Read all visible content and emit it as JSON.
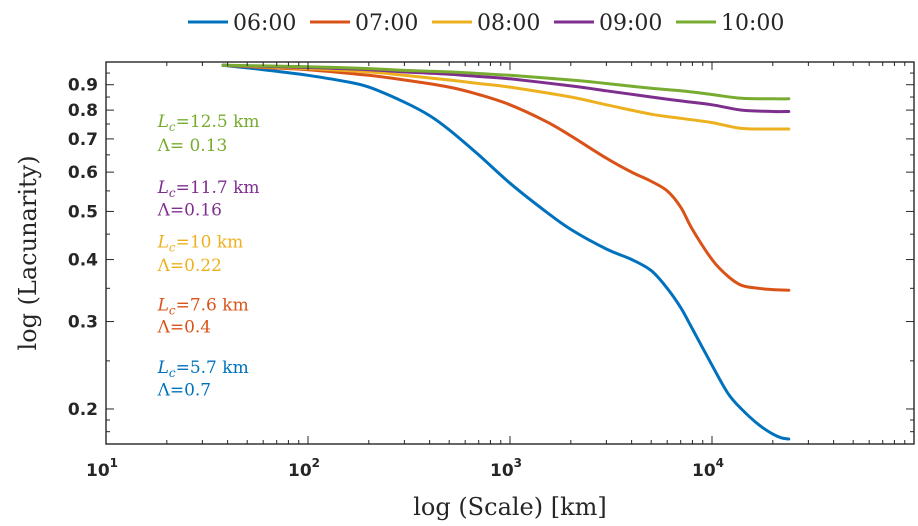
{
  "chart_data": {
    "type": "line",
    "xlabel": "log (Scale) [km]",
    "ylabel": "log (Lacunarity)",
    "xscale": "log",
    "yscale": "log",
    "xlim": [
      10,
      100000
    ],
    "ylim": [
      0.17,
      1.0
    ],
    "grid": false,
    "legend_position": "top",
    "x_ticks": [
      {
        "value": 10,
        "base": "10",
        "exp": "1"
      },
      {
        "value": 100,
        "base": "10",
        "exp": "2"
      },
      {
        "value": 1000,
        "base": "10",
        "exp": "3"
      },
      {
        "value": 10000,
        "base": "10",
        "exp": "4"
      }
    ],
    "y_ticks": [
      {
        "value": 0.2,
        "label": "0.2"
      },
      {
        "value": 0.3,
        "label": "0.3"
      },
      {
        "value": 0.4,
        "label": "0.4"
      },
      {
        "value": 0.5,
        "label": "0.5"
      },
      {
        "value": 0.6,
        "label": "0.6"
      },
      {
        "value": 0.7,
        "label": "0.7"
      },
      {
        "value": 0.8,
        "label": "0.8"
      },
      {
        "value": 0.9,
        "label": "0.9"
      }
    ],
    "series": [
      {
        "name": "06:00",
        "color": "#0072BD",
        "x": [
          38,
          60,
          100,
          150,
          200,
          300,
          400,
          500,
          700,
          1000,
          1500,
          2000,
          3000,
          4000,
          5000,
          6000,
          7000,
          8000,
          10000,
          12000,
          14000,
          17000,
          20000,
          22000,
          24000
        ],
        "y": [
          0.985,
          0.965,
          0.94,
          0.915,
          0.89,
          0.83,
          0.78,
          0.73,
          0.65,
          0.57,
          0.5,
          0.46,
          0.42,
          0.4,
          0.38,
          0.35,
          0.32,
          0.29,
          0.245,
          0.215,
          0.2,
          0.186,
          0.178,
          0.175,
          0.174
        ]
      },
      {
        "name": "07:00",
        "color": "#D95319",
        "x": [
          38,
          60,
          100,
          200,
          300,
          500,
          700,
          1000,
          1500,
          2000,
          3000,
          4000,
          5000,
          6000,
          7000,
          8000,
          10000,
          12000,
          14000,
          17000,
          20000,
          24000
        ],
        "y": [
          0.985,
          0.975,
          0.965,
          0.94,
          0.92,
          0.89,
          0.86,
          0.82,
          0.76,
          0.71,
          0.64,
          0.6,
          0.575,
          0.55,
          0.51,
          0.46,
          0.4,
          0.37,
          0.355,
          0.35,
          0.348,
          0.347
        ]
      },
      {
        "name": "08:00",
        "color": "#EDB120",
        "x": [
          38,
          100,
          200,
          300,
          500,
          700,
          1000,
          2000,
          3000,
          5000,
          7000,
          10000,
          14000,
          20000,
          24000
        ],
        "y": [
          0.985,
          0.97,
          0.955,
          0.94,
          0.92,
          0.905,
          0.89,
          0.85,
          0.82,
          0.785,
          0.77,
          0.755,
          0.735,
          0.733,
          0.733
        ]
      },
      {
        "name": "09:00",
        "color": "#7E2F8E",
        "x": [
          38,
          100,
          200,
          300,
          500,
          700,
          1000,
          2000,
          3000,
          5000,
          7000,
          10000,
          14000,
          20000,
          24000
        ],
        "y": [
          0.985,
          0.975,
          0.965,
          0.955,
          0.945,
          0.935,
          0.925,
          0.895,
          0.875,
          0.85,
          0.835,
          0.82,
          0.8,
          0.795,
          0.795
        ]
      },
      {
        "name": "10:00",
        "color": "#77AC30",
        "x": [
          38,
          100,
          200,
          300,
          500,
          700,
          1000,
          2000,
          3000,
          5000,
          7000,
          10000,
          14000,
          20000,
          24000
        ],
        "y": [
          0.985,
          0.978,
          0.97,
          0.962,
          0.955,
          0.948,
          0.94,
          0.92,
          0.905,
          0.885,
          0.875,
          0.86,
          0.845,
          0.843,
          0.843
        ]
      }
    ],
    "annotations": [
      {
        "series": "10:00",
        "color": "#77AC30",
        "lc_value": "=12.5 km",
        "lambda_text": "Λ= 0.13",
        "x": 18,
        "y_line1": 0.76,
        "y_line2": 0.68
      },
      {
        "series": "09:00",
        "color": "#7E2F8E",
        "lc_value": "=11.7 km",
        "lambda_text": "Λ=0.16",
        "x": 18,
        "y_line1": 0.56,
        "y_line2": 0.505
      },
      {
        "series": "08:00",
        "color": "#EDB120",
        "lc_value": "=10 km",
        "lambda_text": "Λ=0.22",
        "x": 18,
        "y_line1": 0.435,
        "y_line2": 0.39
      },
      {
        "series": "07:00",
        "color": "#D95319",
        "lc_value": "=7.6 km",
        "lambda_text": "Λ=0.4",
        "x": 18,
        "y_line1": 0.325,
        "y_line2": 0.293
      },
      {
        "series": "06:00",
        "color": "#0072BD",
        "lc_value": "=5.7 km",
        "lambda_text": "Λ=0.7",
        "x": 18,
        "y_line1": 0.243,
        "y_line2": 0.219
      }
    ]
  }
}
